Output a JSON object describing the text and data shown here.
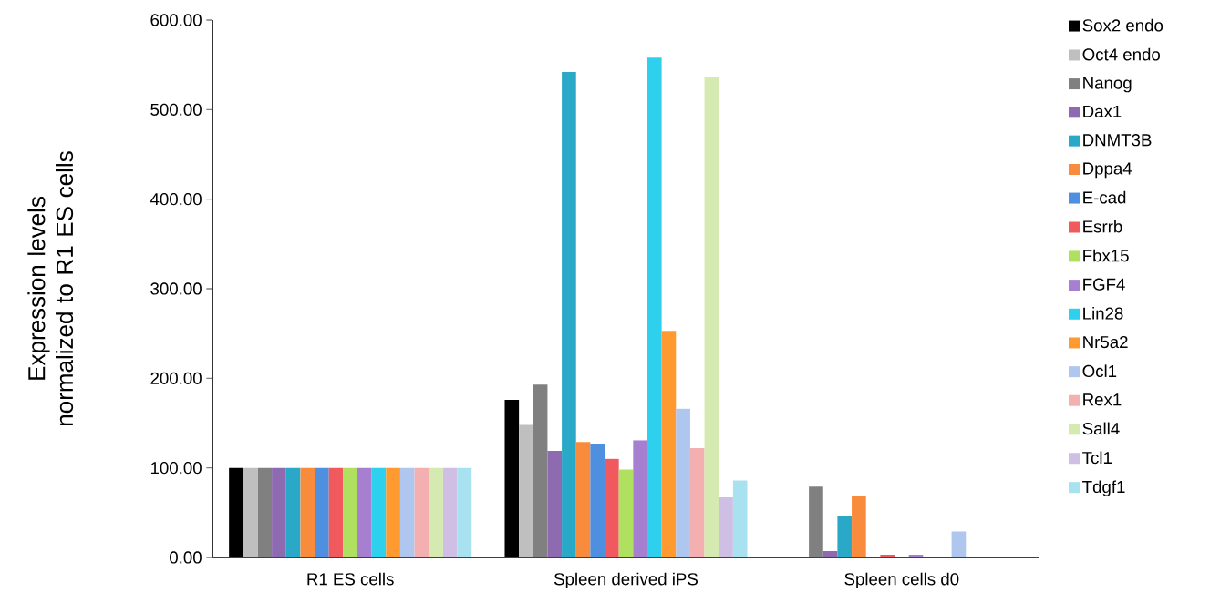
{
  "chart_data": {
    "type": "bar",
    "ylabel": "Expression levels normalized to R1 ES cells",
    "categories": [
      "R1 ES cells",
      "Spleen derived iPS",
      "Spleen cells d0"
    ],
    "ylim": [
      0,
      600
    ],
    "yticks": [
      {
        "value": 0,
        "label": "0.00"
      },
      {
        "value": 100,
        "label": "100.00"
      },
      {
        "value": 200,
        "label": "200.00"
      },
      {
        "value": 300,
        "label": "300.00"
      },
      {
        "value": 400,
        "label": "400.00"
      },
      {
        "value": 500,
        "label": "500.00"
      },
      {
        "value": 600,
        "label": "600.00"
      }
    ],
    "grid": false,
    "legend": "right",
    "series": [
      {
        "name": "Sox2 endo",
        "color": "#000000",
        "values": [
          100,
          176,
          null
        ]
      },
      {
        "name": "Oct4 endo",
        "color": "#bfbfbf",
        "values": [
          100,
          148,
          null
        ]
      },
      {
        "name": "Nanog",
        "color": "#808080",
        "values": [
          100,
          193,
          79
        ]
      },
      {
        "name": "Dax1",
        "color": "#8e6bb0",
        "values": [
          100,
          119,
          7
        ]
      },
      {
        "name": "DNMT3B",
        "color": "#2aa8c8",
        "values": [
          100,
          542,
          46
        ]
      },
      {
        "name": "Dppa4",
        "color": "#f98b3c",
        "values": [
          100,
          129,
          68
        ]
      },
      {
        "name": "E-cad",
        "color": "#4f8fe0",
        "values": [
          100,
          126,
          1
        ]
      },
      {
        "name": "Esrrb",
        "color": "#f05a5e",
        "values": [
          100,
          110,
          3
        ]
      },
      {
        "name": "Fbx15",
        "color": "#b0e060",
        "values": [
          100,
          98,
          0
        ]
      },
      {
        "name": "FGF4",
        "color": "#a67fd0",
        "values": [
          100,
          131,
          3
        ]
      },
      {
        "name": "Lin28",
        "color": "#2fd0ee",
        "values": [
          100,
          558,
          1
        ]
      },
      {
        "name": "Nr5a2",
        "color": "#ff9a30",
        "values": [
          100,
          253,
          0
        ]
      },
      {
        "name": "Ocl1",
        "color": "#afc6ee",
        "values": [
          100,
          166,
          29
        ]
      },
      {
        "name": "Rex1",
        "color": "#f4b0b0",
        "values": [
          100,
          122,
          0
        ]
      },
      {
        "name": "Sall4",
        "color": "#d4eab0",
        "values": [
          100,
          536,
          0
        ]
      },
      {
        "name": "Tcl1",
        "color": "#cfbfe4",
        "values": [
          100,
          67,
          0
        ]
      },
      {
        "name": "Tdgf1",
        "color": "#a8e2f0",
        "values": [
          100,
          86,
          0
        ]
      }
    ]
  }
}
